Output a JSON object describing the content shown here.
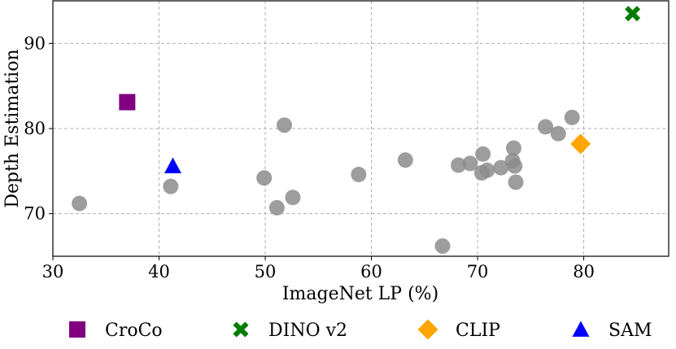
{
  "chart_data": {
    "type": "scatter",
    "title": "",
    "xlabel": "ImageNet LP (%)",
    "ylabel": "Depth Estimation",
    "xlim": [
      30,
      88
    ],
    "ylim": [
      65,
      95
    ],
    "xticks": [
      30,
      40,
      50,
      60,
      70,
      80
    ],
    "yticks": [
      70,
      80,
      90
    ],
    "grid": true,
    "legend_position": "bottom",
    "background_points": {
      "color": "#8c8c8c",
      "points": [
        [
          32.5,
          71.2
        ],
        [
          41.1,
          73.2
        ],
        [
          49.9,
          74.2
        ],
        [
          51.1,
          70.7
        ],
        [
          51.8,
          80.4
        ],
        [
          52.6,
          71.9
        ],
        [
          58.8,
          74.6
        ],
        [
          63.2,
          76.3
        ],
        [
          66.7,
          66.2
        ],
        [
          68.2,
          75.7
        ],
        [
          69.3,
          75.9
        ],
        [
          70.4,
          74.8
        ],
        [
          70.5,
          77.0
        ],
        [
          70.9,
          75.1
        ],
        [
          72.2,
          75.4
        ],
        [
          73.3,
          76.2
        ],
        [
          73.4,
          77.7
        ],
        [
          73.5,
          75.6
        ],
        [
          73.6,
          73.7
        ],
        [
          76.4,
          80.2
        ],
        [
          77.6,
          79.4
        ],
        [
          78.9,
          81.3
        ]
      ]
    },
    "series": [
      {
        "name": "CroCo",
        "marker": "square",
        "color": "#800080",
        "x": 37.0,
        "y": 83.1
      },
      {
        "name": "DINO v2",
        "marker": "x",
        "color": "#007d00",
        "x": 84.6,
        "y": 93.5
      },
      {
        "name": "CLIP",
        "marker": "diamond",
        "color": "#ffa500",
        "x": 79.7,
        "y": 78.2
      },
      {
        "name": "SAM",
        "marker": "triangle",
        "color": "#0000ff",
        "x": 41.3,
        "y": 75.6
      }
    ]
  }
}
